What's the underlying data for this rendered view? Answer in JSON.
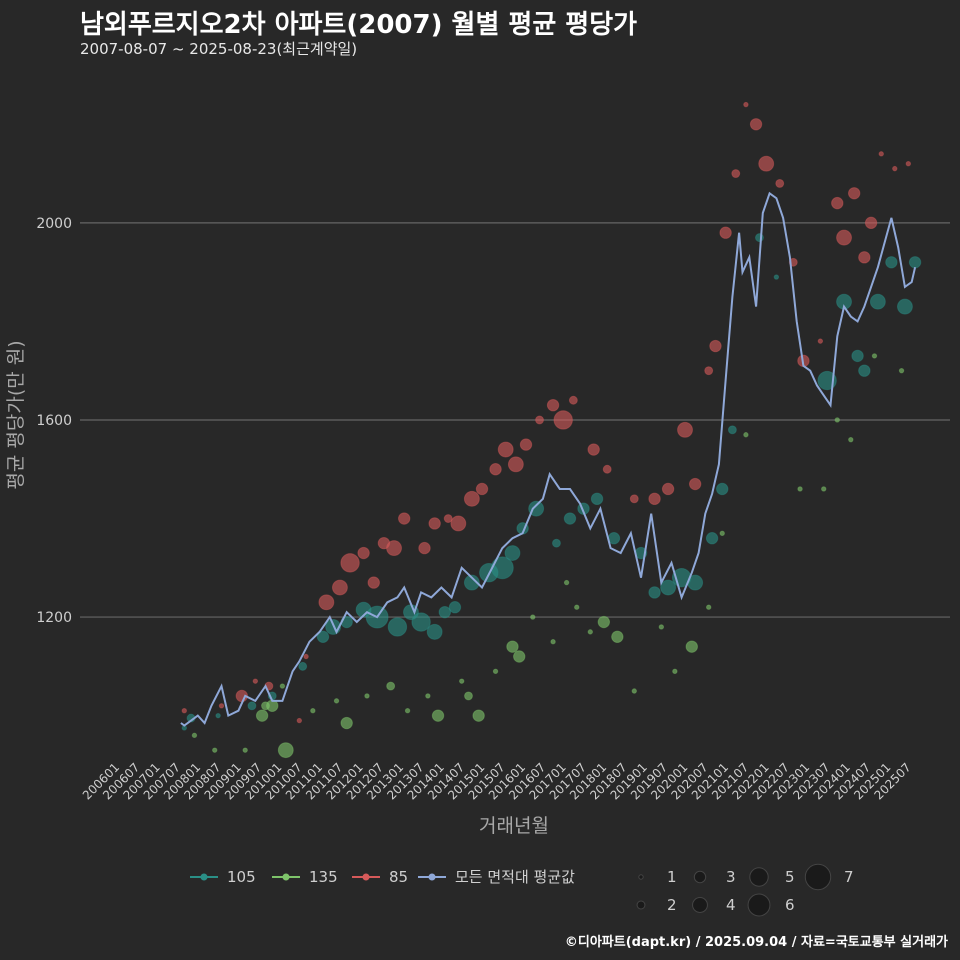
{
  "header": {
    "title": "남외푸르지오2차 아파트(2007) 월별 평균 평당가",
    "subtitle": "2007-08-07 ~ 2025-08-23(최근계약일)"
  },
  "footer": {
    "credit": "©디아파트(dapt.kr) / 2025.09.04 / 자료=국토교통부 실거래가"
  },
  "colors": {
    "background": "#282828",
    "grid": "#666666",
    "area_105": "#2a8f86",
    "area_135": "#7ec46a",
    "area_85": "#d65a5a",
    "mean_line": "#8fa8d8"
  },
  "chart_data": {
    "type": "scatter",
    "xlabel": "거래년월",
    "ylabel": "평균 평당가(만 원)",
    "ylim": [
      910,
      2300
    ],
    "yticks": [
      1200,
      1600,
      2000
    ],
    "grid": true,
    "x_tick_labels": [
      "200601",
      "200607",
      "200701",
      "200707",
      "200801",
      "200807",
      "200901",
      "200907",
      "201001",
      "201007",
      "201101",
      "201107",
      "201201",
      "201207",
      "201301",
      "201307",
      "201401",
      "201407",
      "201501",
      "201507",
      "201601",
      "201607",
      "201701",
      "201707",
      "201801",
      "201807",
      "201901",
      "201907",
      "202001",
      "202007",
      "202101",
      "202107",
      "202201",
      "202207",
      "202301",
      "202307",
      "202401",
      "202407",
      "202501",
      "202507"
    ],
    "legend_placement": "bottom",
    "legend": {
      "series_labels": [
        "105",
        "135",
        "85",
        "모든 면적대 평균값"
      ],
      "size_labels": [
        "1",
        "2",
        "3",
        "4",
        "5",
        "6",
        "7"
      ]
    },
    "series": [
      {
        "name": "모든 면적대 평균값",
        "kind": "line",
        "points": [
          [
            "2007-07",
            985
          ],
          [
            "2007-08",
            980
          ],
          [
            "2007-10",
            990
          ],
          [
            "2007-12",
            1000
          ],
          [
            "2008-02",
            985
          ],
          [
            "2008-04",
            1020
          ],
          [
            "2008-07",
            1060
          ],
          [
            "2008-09",
            1000
          ],
          [
            "2008-12",
            1010
          ],
          [
            "2009-02",
            1040
          ],
          [
            "2009-05",
            1030
          ],
          [
            "2009-08",
            1060
          ],
          [
            "2009-10",
            1030
          ],
          [
            "2010-01",
            1030
          ],
          [
            "2010-04",
            1090
          ],
          [
            "2010-06",
            1110
          ],
          [
            "2010-09",
            1150
          ],
          [
            "2010-12",
            1170
          ],
          [
            "2011-03",
            1200
          ],
          [
            "2011-05",
            1170
          ],
          [
            "2011-08",
            1210
          ],
          [
            "2011-11",
            1190
          ],
          [
            "2012-02",
            1210
          ],
          [
            "2012-05",
            1200
          ],
          [
            "2012-08",
            1230
          ],
          [
            "2012-11",
            1240
          ],
          [
            "2013-01",
            1260
          ],
          [
            "2013-04",
            1210
          ],
          [
            "2013-06",
            1250
          ],
          [
            "2013-09",
            1240
          ],
          [
            "2013-12",
            1260
          ],
          [
            "2014-03",
            1240
          ],
          [
            "2014-06",
            1300
          ],
          [
            "2014-09",
            1280
          ],
          [
            "2014-12",
            1260
          ],
          [
            "2015-03",
            1300
          ],
          [
            "2015-06",
            1340
          ],
          [
            "2015-09",
            1360
          ],
          [
            "2015-12",
            1370
          ],
          [
            "2016-03",
            1420
          ],
          [
            "2016-06",
            1440
          ],
          [
            "2016-08",
            1490
          ],
          [
            "2016-11",
            1460
          ],
          [
            "2017-02",
            1460
          ],
          [
            "2017-05",
            1430
          ],
          [
            "2017-08",
            1380
          ],
          [
            "2017-11",
            1420
          ],
          [
            "2018-02",
            1340
          ],
          [
            "2018-05",
            1330
          ],
          [
            "2018-08",
            1370
          ],
          [
            "2018-11",
            1280
          ],
          [
            "2019-02",
            1410
          ],
          [
            "2019-05",
            1270
          ],
          [
            "2019-08",
            1310
          ],
          [
            "2019-11",
            1240
          ],
          [
            "2020-02",
            1290
          ],
          [
            "2020-04",
            1330
          ],
          [
            "2020-06",
            1410
          ],
          [
            "2020-08",
            1450
          ],
          [
            "2020-10",
            1510
          ],
          [
            "2020-12",
            1680
          ],
          [
            "2021-02",
            1850
          ],
          [
            "2021-04",
            1980
          ],
          [
            "2021-05",
            1900
          ],
          [
            "2021-07",
            1930
          ],
          [
            "2021-09",
            1830
          ],
          [
            "2021-11",
            2020
          ],
          [
            "2022-01",
            2060
          ],
          [
            "2022-03",
            2050
          ],
          [
            "2022-05",
            2010
          ],
          [
            "2022-07",
            1930
          ],
          [
            "2022-09",
            1800
          ],
          [
            "2022-11",
            1710
          ],
          [
            "2023-01",
            1700
          ],
          [
            "2023-03",
            1670
          ],
          [
            "2023-05",
            1650
          ],
          [
            "2023-07",
            1630
          ],
          [
            "2023-09",
            1770
          ],
          [
            "2023-11",
            1830
          ],
          [
            "2024-01",
            1810
          ],
          [
            "2024-03",
            1800
          ],
          [
            "2024-05",
            1830
          ],
          [
            "2024-07",
            1870
          ],
          [
            "2024-09",
            1910
          ],
          [
            "2024-11",
            1960
          ],
          [
            "2025-01",
            2010
          ],
          [
            "2025-03",
            1950
          ],
          [
            "2025-05",
            1870
          ],
          [
            "2025-07",
            1880
          ],
          [
            "2025-08",
            1910
          ]
        ]
      },
      {
        "name": "105",
        "kind": "bubbles",
        "points": [
          [
            "2007-08",
            975,
            1
          ],
          [
            "2007-10",
            995,
            2
          ],
          [
            "2008-06",
            1000,
            1
          ],
          [
            "2009-04",
            1020,
            2
          ],
          [
            "2009-10",
            1040,
            2
          ],
          [
            "2010-07",
            1100,
            2
          ],
          [
            "2011-01",
            1160,
            3
          ],
          [
            "2011-04",
            1180,
            4
          ],
          [
            "2011-08",
            1190,
            3
          ],
          [
            "2012-01",
            1215,
            4
          ],
          [
            "2012-05",
            1200,
            6
          ],
          [
            "2012-11",
            1180,
            5
          ],
          [
            "2013-03",
            1210,
            4
          ],
          [
            "2013-06",
            1190,
            5
          ],
          [
            "2013-10",
            1170,
            4
          ],
          [
            "2014-01",
            1210,
            3
          ],
          [
            "2014-04",
            1220,
            3
          ],
          [
            "2014-09",
            1270,
            4
          ],
          [
            "2015-02",
            1290,
            5
          ],
          [
            "2015-06",
            1300,
            6
          ],
          [
            "2015-09",
            1330,
            4
          ],
          [
            "2015-12",
            1380,
            3
          ],
          [
            "2016-04",
            1420,
            4
          ],
          [
            "2016-10",
            1350,
            2
          ],
          [
            "2017-02",
            1400,
            3
          ],
          [
            "2017-06",
            1420,
            3
          ],
          [
            "2017-10",
            1440,
            3
          ],
          [
            "2018-03",
            1360,
            3
          ],
          [
            "2018-11",
            1330,
            3
          ],
          [
            "2019-03",
            1250,
            3
          ],
          [
            "2019-07",
            1260,
            4
          ],
          [
            "2019-11",
            1280,
            5
          ],
          [
            "2020-03",
            1270,
            4
          ],
          [
            "2020-08",
            1360,
            3
          ],
          [
            "2020-11",
            1460,
            3
          ],
          [
            "2021-02",
            1580,
            2
          ],
          [
            "2021-10",
            1970,
            2
          ],
          [
            "2022-03",
            1890,
            1
          ],
          [
            "2023-06",
            1680,
            5
          ],
          [
            "2023-11",
            1840,
            4
          ],
          [
            "2024-03",
            1730,
            3
          ],
          [
            "2024-05",
            1700,
            3
          ],
          [
            "2024-09",
            1840,
            4
          ],
          [
            "2025-01",
            1920,
            3
          ],
          [
            "2025-05",
            1830,
            4
          ],
          [
            "2025-08",
            1920,
            3
          ]
        ]
      },
      {
        "name": "135",
        "kind": "bubbles",
        "points": [
          [
            "2007-11",
            960,
            1
          ],
          [
            "2008-05",
            930,
            1
          ],
          [
            "2009-02",
            930,
            1
          ],
          [
            "2009-07",
            1000,
            3
          ],
          [
            "2009-08",
            1020,
            2
          ],
          [
            "2009-10",
            1020,
            3
          ],
          [
            "2010-01",
            1060,
            1
          ],
          [
            "2010-02",
            930,
            4
          ],
          [
            "2010-10",
            1010,
            1
          ],
          [
            "2011-05",
            1030,
            1
          ],
          [
            "2011-08",
            985,
            3
          ],
          [
            "2012-02",
            1040,
            1
          ],
          [
            "2012-09",
            1060,
            2
          ],
          [
            "2013-02",
            1010,
            1
          ],
          [
            "2013-08",
            1040,
            1
          ],
          [
            "2013-11",
            1000,
            3
          ],
          [
            "2014-06",
            1070,
            1
          ],
          [
            "2014-08",
            1040,
            2
          ],
          [
            "2014-11",
            1000,
            3
          ],
          [
            "2015-04",
            1090,
            1
          ],
          [
            "2015-09",
            1140,
            3
          ],
          [
            "2015-11",
            1120,
            3
          ],
          [
            "2016-03",
            1200,
            1
          ],
          [
            "2016-09",
            1150,
            1
          ],
          [
            "2017-01",
            1270,
            1
          ],
          [
            "2017-04",
            1220,
            1
          ],
          [
            "2017-08",
            1170,
            1
          ],
          [
            "2017-12",
            1190,
            3
          ],
          [
            "2018-04",
            1160,
            3
          ],
          [
            "2018-09",
            1050,
            1
          ],
          [
            "2019-05",
            1180,
            1
          ],
          [
            "2019-09",
            1090,
            1
          ],
          [
            "2020-02",
            1140,
            3
          ],
          [
            "2020-07",
            1220,
            1
          ],
          [
            "2020-11",
            1370,
            1
          ],
          [
            "2021-06",
            1570,
            1
          ],
          [
            "2022-10",
            1460,
            1
          ],
          [
            "2023-05",
            1460,
            1
          ],
          [
            "2023-09",
            1600,
            1
          ],
          [
            "2024-01",
            1560,
            1
          ],
          [
            "2024-08",
            1730,
            1
          ],
          [
            "2025-04",
            1700,
            1
          ]
        ]
      },
      {
        "name": "85",
        "kind": "bubbles",
        "points": [
          [
            "2007-08",
            1010,
            1
          ],
          [
            "2008-07",
            1020,
            1
          ],
          [
            "2009-01",
            1040,
            3
          ],
          [
            "2009-05",
            1070,
            1
          ],
          [
            "2009-09",
            1060,
            2
          ],
          [
            "2010-06",
            990,
            1
          ],
          [
            "2010-08",
            1120,
            1
          ],
          [
            "2011-02",
            1230,
            4
          ],
          [
            "2011-06",
            1260,
            4
          ],
          [
            "2011-09",
            1310,
            5
          ],
          [
            "2012-01",
            1330,
            3
          ],
          [
            "2012-04",
            1270,
            3
          ],
          [
            "2012-07",
            1350,
            3
          ],
          [
            "2012-10",
            1340,
            4
          ],
          [
            "2013-01",
            1400,
            3
          ],
          [
            "2013-07",
            1340,
            3
          ],
          [
            "2013-10",
            1390,
            3
          ],
          [
            "2014-02",
            1400,
            2
          ],
          [
            "2014-05",
            1390,
            4
          ],
          [
            "2014-09",
            1440,
            4
          ],
          [
            "2014-12",
            1460,
            3
          ],
          [
            "2015-04",
            1500,
            3
          ],
          [
            "2015-07",
            1540,
            4
          ],
          [
            "2015-10",
            1510,
            4
          ],
          [
            "2016-01",
            1550,
            3
          ],
          [
            "2016-05",
            1600,
            2
          ],
          [
            "2016-09",
            1630,
            3
          ],
          [
            "2016-12",
            1600,
            5
          ],
          [
            "2017-03",
            1640,
            2
          ],
          [
            "2017-09",
            1540,
            3
          ],
          [
            "2018-01",
            1500,
            2
          ],
          [
            "2018-09",
            1440,
            2
          ],
          [
            "2019-03",
            1440,
            3
          ],
          [
            "2019-07",
            1460,
            3
          ],
          [
            "2019-12",
            1580,
            4
          ],
          [
            "2020-03",
            1470,
            3
          ],
          [
            "2020-07",
            1700,
            2
          ],
          [
            "2020-09",
            1750,
            3
          ],
          [
            "2020-12",
            1980,
            3
          ],
          [
            "2021-03",
            2100,
            2
          ],
          [
            "2021-06",
            2240,
            1
          ],
          [
            "2021-09",
            2200,
            3
          ],
          [
            "2021-12",
            2120,
            4
          ],
          [
            "2022-04",
            2080,
            2
          ],
          [
            "2022-08",
            1920,
            2
          ],
          [
            "2022-11",
            1720,
            3
          ],
          [
            "2023-04",
            1760,
            1
          ],
          [
            "2023-09",
            2040,
            3
          ],
          [
            "2023-11",
            1970,
            4
          ],
          [
            "2024-02",
            2060,
            3
          ],
          [
            "2024-05",
            1930,
            3
          ],
          [
            "2024-07",
            2000,
            3
          ],
          [
            "2024-10",
            2140,
            1
          ],
          [
            "2025-02",
            2110,
            1
          ],
          [
            "2025-06",
            2120,
            1
          ]
        ]
      }
    ]
  }
}
